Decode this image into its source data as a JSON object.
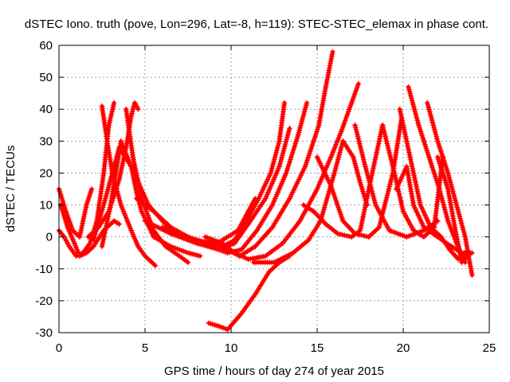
{
  "chart_data": {
    "type": "scatter",
    "title": "dSTEC Iono. truth (pove, Lon=296, Lat=-8, h=119): STEC-STEC_elemax in phase cont.",
    "xlabel": "GPS time / hours of day 274 of year 2015",
    "ylabel": "dSTEC  / TECUs",
    "xlim": [
      0,
      25
    ],
    "ylim": [
      -30,
      60
    ],
    "xticks": [
      0,
      5,
      10,
      15,
      20,
      25
    ],
    "yticks": [
      -30,
      -20,
      -10,
      0,
      10,
      20,
      30,
      40,
      50,
      60
    ],
    "grid": true,
    "legend": "none",
    "marker": "plus",
    "color": "#ff0000",
    "series": [
      {
        "x": [
          0.0,
          0.4,
          0.8,
          1.2,
          1.4,
          1.6,
          1.9
        ],
        "y": [
          15,
          8,
          2,
          0,
          5,
          10,
          15
        ]
      },
      {
        "x": [
          0.1,
          0.5,
          0.9,
          1.2,
          1.6,
          2.0,
          2.6,
          3.2,
          3.5
        ],
        "y": [
          10,
          3,
          -2,
          -6,
          -5,
          -3,
          2,
          5,
          4
        ]
      },
      {
        "x": [
          0.0,
          0.3,
          0.6,
          1.0,
          1.4,
          1.8,
          2.2,
          2.6,
          2.9,
          3.2
        ],
        "y": [
          2,
          0,
          -3,
          -6,
          -5,
          -2,
          5,
          20,
          35,
          42
        ]
      },
      {
        "x": [
          2.5,
          2.8,
          3.1,
          3.6,
          4.2,
          4.6,
          5.0,
          5.6
        ],
        "y": [
          41,
          30,
          20,
          10,
          2,
          -3,
          -6,
          -9
        ]
      },
      {
        "x": [
          1.7,
          2.3,
          2.9,
          3.5,
          3.9,
          4.2,
          4.4,
          4.6
        ],
        "y": [
          0,
          3,
          8,
          18,
          28,
          38,
          42,
          40
        ]
      },
      {
        "x": [
          3.9,
          4.3,
          4.8,
          5.5,
          6.2,
          7.0,
          7.5
        ],
        "y": [
          40,
          25,
          12,
          2,
          -3,
          -6,
          -8
        ]
      },
      {
        "x": [
          2.0,
          2.7,
          3.5,
          4.2,
          4.5,
          4.8,
          5.5,
          6.5,
          7.5,
          8.2
        ],
        "y": [
          -1,
          12,
          28,
          22,
          14,
          8,
          0,
          -3,
          -5,
          -6
        ]
      },
      {
        "x": [
          2.5,
          3.0,
          3.6,
          4.2,
          5.2,
          6.5,
          7.8,
          9.2,
          10.4,
          11.0,
          11.4
        ],
        "y": [
          -3,
          10,
          30,
          22,
          10,
          2,
          -1,
          -2,
          2,
          8,
          12
        ]
      },
      {
        "x": [
          4.5,
          5.5,
          6.5,
          7.5,
          8.5,
          9.5,
          10.2,
          10.8,
          11.6,
          12.3,
          12.8,
          13.1
        ],
        "y": [
          12,
          8,
          3,
          0,
          -2,
          -3,
          -1,
          4,
          12,
          20,
          30,
          42
        ]
      },
      {
        "x": [
          5.0,
          6.5,
          8.0,
          9.3,
          10.2,
          11.0,
          12.0,
          12.8,
          13.4
        ],
        "y": [
          5,
          1,
          -2,
          -4,
          -2,
          4,
          12,
          22,
          34
        ]
      },
      {
        "x": [
          6.0,
          7.5,
          8.8,
          9.8,
          10.6,
          11.5,
          12.4,
          13.2,
          13.9,
          14.4
        ],
        "y": [
          3,
          -1,
          -3,
          -5,
          -4,
          2,
          10,
          20,
          32,
          42
        ]
      },
      {
        "x": [
          7.0,
          8.5,
          9.8,
          10.5,
          11.4,
          12.4,
          13.4,
          14.3,
          15.1,
          15.5,
          15.9
        ],
        "y": [
          1,
          -2,
          -4,
          -6,
          -3,
          3,
          12,
          22,
          35,
          47,
          58
        ]
      },
      {
        "x": [
          8.5,
          9.5,
          10.2,
          11.0,
          12.0,
          13.0,
          14.0,
          15.0,
          15.8,
          16.4,
          17.0,
          17.4
        ],
        "y": [
          0,
          -2,
          -5,
          -7,
          -6,
          -2,
          5,
          15,
          25,
          33,
          42,
          48
        ]
      },
      {
        "x": [
          8.7,
          9.3,
          9.8
        ],
        "y": [
          -27,
          -28,
          -29
        ]
      },
      {
        "x": [
          9.8,
          10.6,
          11.4,
          12.2,
          12.8,
          13.4
        ],
        "y": [
          -29,
          -24,
          -18,
          -11,
          -8,
          -6
        ]
      },
      {
        "x": [
          11.3,
          12.5,
          13.6,
          14.5,
          15.2,
          16.0,
          16.5,
          17.1,
          17.5,
          17.9
        ],
        "y": [
          -8,
          -8,
          -5,
          -1,
          5,
          20,
          30,
          25,
          17,
          10
        ]
      },
      {
        "x": [
          14.2,
          14.8,
          15.5,
          16.2,
          17.0,
          17.5,
          18.2,
          18.8
        ],
        "y": [
          10,
          8,
          4,
          1,
          0,
          2,
          20,
          35
        ]
      },
      {
        "x": [
          15.0,
          15.8,
          16.5,
          17.2,
          18.0,
          18.6,
          19.4,
          19.9
        ],
        "y": [
          25,
          16,
          5,
          1,
          0,
          3,
          20,
          37
        ]
      },
      {
        "x": [
          17.2,
          17.8,
          18.4,
          19.2,
          20.2,
          21.2,
          22.0
        ],
        "y": [
          35,
          22,
          10,
          2,
          0,
          2,
          5
        ]
      },
      {
        "x": [
          18.8,
          19.4,
          20.0,
          20.6,
          21.2,
          21.8,
          22.3
        ],
        "y": [
          35,
          22,
          8,
          2,
          0,
          3,
          25
        ]
      },
      {
        "x": [
          19.8,
          20.4,
          21.0,
          21.6,
          22.2,
          22.7,
          23.2,
          23.6
        ],
        "y": [
          40,
          25,
          10,
          3,
          0,
          -4,
          -7,
          -5
        ]
      },
      {
        "x": [
          19.6,
          20.2,
          20.6,
          21.2,
          22.0,
          22.8,
          23.4,
          23.9
        ],
        "y": [
          15,
          22,
          10,
          3,
          0,
          -3,
          -5,
          -5
        ]
      },
      {
        "x": [
          20.3,
          20.9,
          21.5,
          22.1,
          22.6,
          23.1,
          23.6
        ],
        "y": [
          47,
          35,
          25,
          15,
          5,
          -2,
          -8
        ]
      },
      {
        "x": [
          21.4,
          22.0,
          22.6,
          23.1,
          23.6,
          24.0
        ],
        "y": [
          42,
          30,
          20,
          10,
          0,
          -12
        ]
      },
      {
        "x": [
          22.0,
          22.6,
          23.0,
          23.4,
          23.7,
          24.0
        ],
        "y": [
          25,
          15,
          3,
          -8,
          -6,
          -5
        ]
      }
    ]
  }
}
